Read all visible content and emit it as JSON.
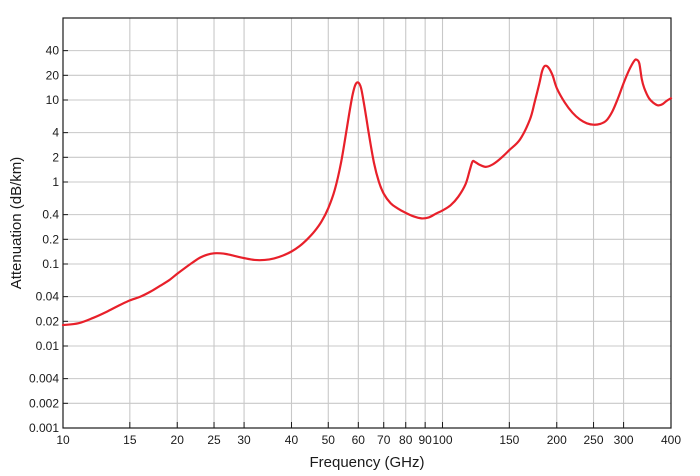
{
  "chart_data": {
    "type": "line",
    "xlabel": "Frequency (GHz)",
    "ylabel": "Attenuation (dB/km)",
    "x_scale": "log",
    "y_scale": "log",
    "xlim": [
      10,
      400
    ],
    "ylim": [
      0.001,
      100
    ],
    "grid": true,
    "x_ticks": [
      10,
      15,
      20,
      25,
      30,
      40,
      50,
      60,
      70,
      80,
      90,
      100,
      150,
      200,
      250,
      300,
      400
    ],
    "x_tick_labels": [
      "10",
      "15",
      "20",
      "25",
      "30",
      "40",
      "50",
      "60",
      "70",
      "80",
      "90",
      "100",
      "150",
      "200",
      "250",
      "300",
      "400"
    ],
    "y_ticks": [
      0.001,
      0.002,
      0.004,
      0.01,
      0.02,
      0.04,
      0.1,
      0.2,
      0.4,
      1,
      2,
      4,
      10,
      20,
      40
    ],
    "y_tick_labels": [
      "0.001",
      "0.002",
      "0.004",
      "0.01",
      "0.02",
      "0.04",
      "0.1",
      "0.2",
      "0.4",
      "1",
      "2",
      "4",
      "10",
      "20",
      "40"
    ],
    "series_color": "#e8202a",
    "series": [
      {
        "x": [
          10,
          11,
          12,
          13,
          14,
          15,
          16,
          17,
          18,
          19,
          20,
          21,
          22,
          23,
          24,
          25,
          26,
          27,
          28,
          30,
          32,
          34,
          36,
          38,
          40,
          42,
          44,
          46,
          48,
          50,
          52,
          54,
          56,
          57,
          58,
          59,
          60,
          61,
          62,
          63,
          64,
          66,
          68,
          70,
          73,
          76,
          80,
          84,
          88,
          92,
          96,
          100,
          105,
          110,
          115,
          118,
          120,
          122,
          125,
          130,
          135,
          140,
          145,
          150,
          160,
          170,
          175,
          180,
          183,
          186,
          190,
          195,
          200,
          210,
          220,
          230,
          240,
          250,
          260,
          270,
          280,
          290,
          300,
          310,
          320,
          325,
          330,
          335,
          340,
          350,
          360,
          370,
          380,
          390,
          400
        ],
        "y": [
          0.018,
          0.019,
          0.022,
          0.026,
          0.031,
          0.036,
          0.04,
          0.046,
          0.054,
          0.063,
          0.076,
          0.09,
          0.105,
          0.12,
          0.13,
          0.135,
          0.135,
          0.132,
          0.127,
          0.118,
          0.112,
          0.112,
          0.117,
          0.127,
          0.142,
          0.165,
          0.2,
          0.25,
          0.33,
          0.48,
          0.8,
          1.7,
          4.6,
          7.6,
          11.8,
          15.5,
          16.3,
          14,
          9.4,
          6,
          3.8,
          1.7,
          1,
          0.72,
          0.55,
          0.48,
          0.42,
          0.38,
          0.36,
          0.37,
          0.41,
          0.45,
          0.52,
          0.66,
          0.94,
          1.4,
          1.78,
          1.75,
          1.63,
          1.53,
          1.62,
          1.82,
          2.1,
          2.45,
          3.3,
          5.8,
          9.5,
          16,
          22.5,
          26,
          25,
          20,
          14,
          9.3,
          7,
          5.8,
          5.2,
          5,
          5.1,
          5.6,
          7.2,
          10.5,
          16,
          23,
          30,
          31,
          28,
          18,
          14,
          10.5,
          9.2,
          8.6,
          8.9,
          9.8,
          10.5
        ]
      }
    ]
  }
}
